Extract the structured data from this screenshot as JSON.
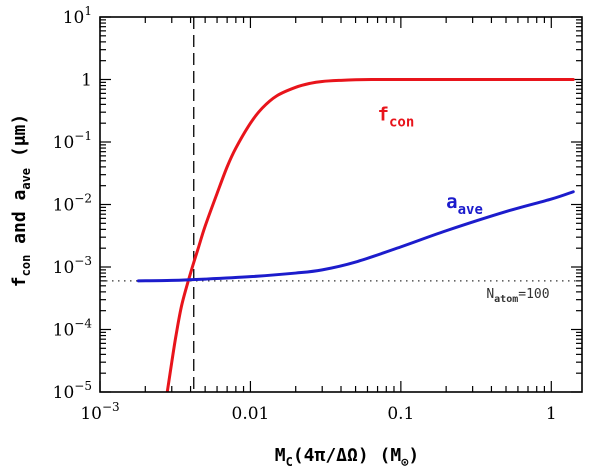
{
  "chart_data": {
    "type": "line",
    "x_scale": "log",
    "y_scale": "log",
    "xlim": [
      0.001,
      1.6
    ],
    "ylim": [
      1e-05,
      10
    ],
    "x_ticks": [
      {
        "value": 0.001,
        "base": "10",
        "exp": "−3",
        "text": ""
      },
      {
        "value": 0.01,
        "base": "",
        "exp": "",
        "text": "0.01"
      },
      {
        "value": 0.1,
        "base": "",
        "exp": "",
        "text": "0.1"
      },
      {
        "value": 1,
        "base": "",
        "exp": "",
        "text": "1"
      }
    ],
    "y_ticks": [
      {
        "value": 1e-05,
        "base": "10",
        "exp": "−5",
        "text": ""
      },
      {
        "value": 0.0001,
        "base": "10",
        "exp": "−4",
        "text": ""
      },
      {
        "value": 0.001,
        "base": "10",
        "exp": "−3",
        "text": ""
      },
      {
        "value": 0.01,
        "base": "10",
        "exp": "−2",
        "text": ""
      },
      {
        "value": 0.1,
        "base": "10",
        "exp": "−1",
        "text": ""
      },
      {
        "value": 1,
        "base": "",
        "exp": "",
        "text": "1"
      },
      {
        "value": 10,
        "base": "10",
        "exp": "1",
        "text": ""
      }
    ],
    "xlabel": {
      "main": "M",
      "sub": "C",
      "rest": "(4π/ΔΩ) (M",
      "sun": "⊙",
      "close": ")"
    },
    "ylabel": {
      "f": "f",
      "f_sub": "con",
      "and": " and a",
      "a_sub": "ave",
      "unit": " (μm)"
    },
    "series": [
      {
        "name": "f",
        "sub": "con",
        "color": "#e8141b",
        "x": [
          0.0028,
          0.003,
          0.0032,
          0.0035,
          0.004,
          0.0045,
          0.005,
          0.006,
          0.007,
          0.008,
          0.01,
          0.012,
          0.015,
          0.02,
          0.025,
          0.03,
          0.04,
          0.05,
          0.07,
          0.1,
          0.2,
          0.5,
          1.0,
          1.4
        ],
        "y": [
          1e-05,
          3e-05,
          8e-05,
          0.00025,
          0.0008,
          0.002,
          0.0045,
          0.015,
          0.04,
          0.08,
          0.2,
          0.35,
          0.55,
          0.75,
          0.87,
          0.93,
          0.97,
          0.99,
          1.0,
          1.0,
          1.0,
          1.0,
          1.0,
          1.0
        ],
        "label_at": {
          "x": 0.07,
          "y": 0.22
        }
      },
      {
        "name": "a",
        "sub": "ave",
        "color": "#1c1ccc",
        "x": [
          0.0018,
          0.003,
          0.005,
          0.01,
          0.02,
          0.03,
          0.05,
          0.1,
          0.2,
          0.5,
          1.0,
          1.4
        ],
        "y": [
          0.0006,
          0.00061,
          0.00064,
          0.0007,
          0.0008,
          0.0009,
          0.0012,
          0.0021,
          0.0038,
          0.0077,
          0.0122,
          0.016
        ],
        "label_at": {
          "x": 0.2,
          "y": 0.0088
        }
      }
    ],
    "reference_lines": [
      {
        "orientation": "horizontal",
        "value": 0.0006,
        "style": "dotted",
        "color": "#333333",
        "label": {
          "main": "N",
          "sub": "atom",
          "rest": "=100"
        },
        "label_at": {
          "x": 0.37,
          "y": 0.00032
        }
      },
      {
        "orientation": "vertical",
        "value": 0.0042,
        "style": "dashed",
        "color": "#000000"
      }
    ]
  }
}
